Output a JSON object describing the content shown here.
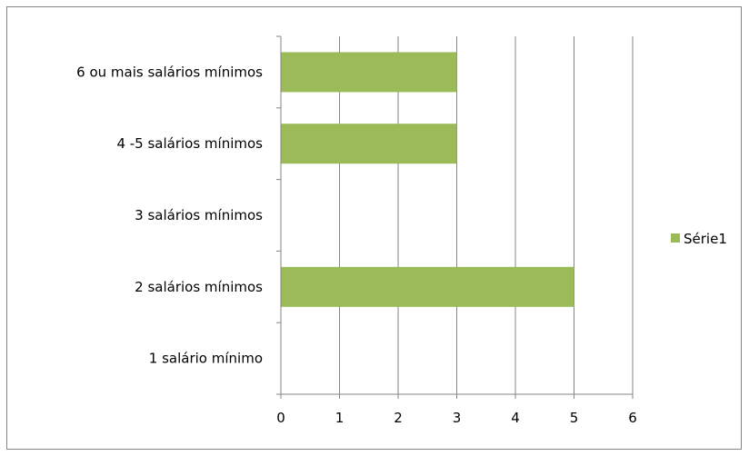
{
  "chart_data": {
    "type": "bar",
    "orientation": "horizontal",
    "title": "",
    "xlabel": "",
    "ylabel": "",
    "categories": [
      "1 salário mínimo",
      "2 salários mínimos",
      "3 salários mínimos",
      "4 -5 salários mínimos",
      "6 ou mais salários mínimos"
    ],
    "series": [
      {
        "name": "Série1",
        "values": [
          0,
          5,
          0,
          3,
          3
        ],
        "color": "#9bbb59"
      }
    ],
    "xlim": [
      0,
      6
    ],
    "xticks": [
      "0",
      "1",
      "2",
      "3",
      "4",
      "5",
      "6"
    ],
    "grid": "vertical",
    "legend": "right",
    "grid_color": "#868686",
    "axis_color": "#868686"
  }
}
